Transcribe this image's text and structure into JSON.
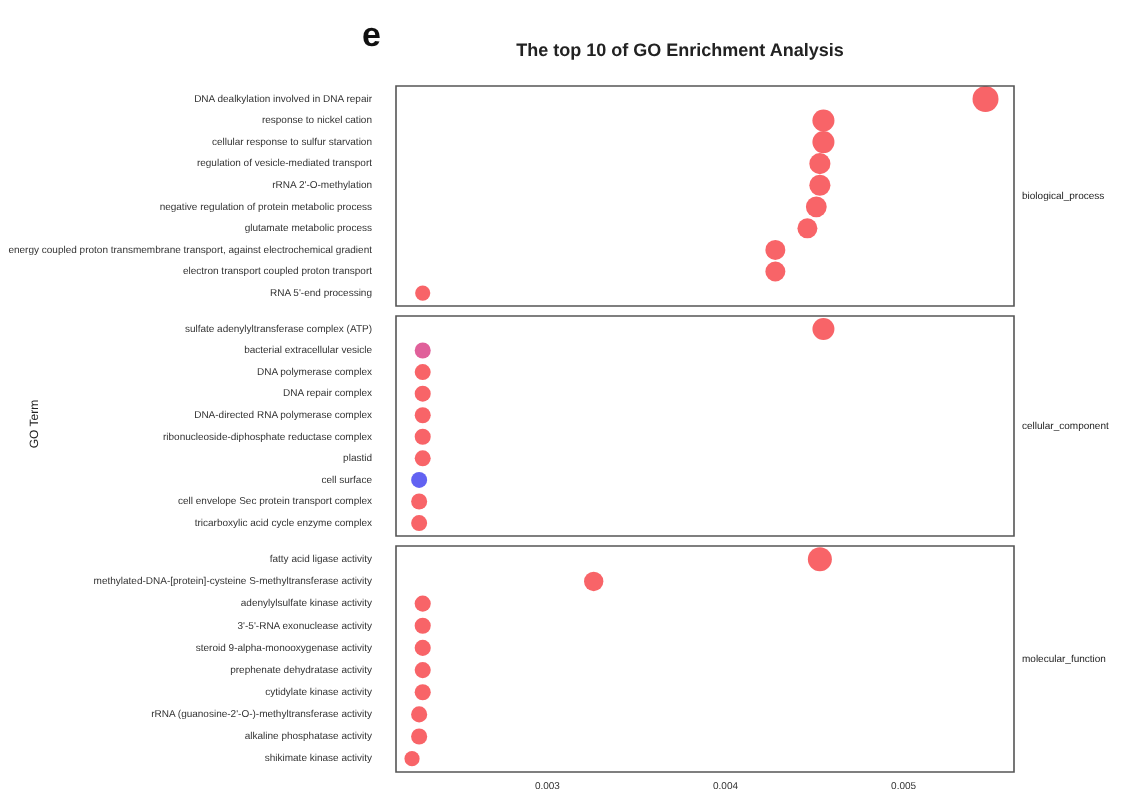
{
  "chart_data": [
    {
      "type": "bubble",
      "title": "The top 10 of GO Enrichment Analysis",
      "annotations": [
        "e"
      ],
      "y2label": "biological_process",
      "orientation": "horizontal",
      "tick_labels": "y",
      "legend": false,
      "grid": false,
      "xlim": [
        0.00215,
        0.00562
      ],
      "xticks": [
        0.003,
        0.004,
        0.005
      ],
      "categories": [
        "DNA dealkylation involved in DNA repair",
        "response to nickel cation",
        "cellular response to sulfur starvation",
        "regulation of vesicle-mediated transport",
        "rRNA 2'-O-methylation",
        "negative regulation of protein metabolic process",
        "glutamate metabolic process",
        "energy coupled proton transmembrane transport, against electrochemical gradient",
        "electron transport coupled proton transport",
        "RNA 5'-end processing"
      ],
      "values": [
        0.00546,
        0.00455,
        0.00455,
        0.00453,
        0.00453,
        0.00451,
        0.00446,
        0.00428,
        0.00428,
        0.0023
      ],
      "sizes": [
        1,
        0.72,
        0.72,
        0.66,
        0.66,
        0.64,
        0.59,
        0.59,
        0.59,
        0.34
      ],
      "colors": [
        "#f86468",
        "#f86468",
        "#f86468",
        "#f86468",
        "#f86468",
        "#f86468",
        "#f86468",
        "#f86468",
        "#f86468",
        "#f86468"
      ]
    },
    {
      "type": "bubble",
      "ylabel": "GO Term",
      "y2label": "cellular_component",
      "orientation": "horizontal",
      "tick_labels": "y",
      "legend": false,
      "grid": false,
      "xlim": [
        0.00215,
        0.00562
      ],
      "xticks": [
        0.003,
        0.004,
        0.005
      ],
      "categories": [
        "sulfate adenylyltransferase complex (ATP)",
        "bacterial extracellular vesicle",
        "DNA polymerase complex",
        "DNA repair complex",
        "DNA-directed RNA polymerase complex",
        "ribonucleoside-diphosphate reductase complex",
        "plastid",
        "cell surface",
        "cell envelope Sec protein transport complex",
        "tricarboxylic acid cycle enzyme complex"
      ],
      "values": [
        0.00455,
        0.0023,
        0.0023,
        0.0023,
        0.0023,
        0.0023,
        0.0023,
        0.00228,
        0.00228,
        0.00228
      ],
      "sizes": [
        1,
        0.53,
        0.53,
        0.53,
        0.53,
        0.53,
        0.53,
        0.53,
        0.53,
        0.53
      ],
      "colors": [
        "#f86468",
        "#e0609a",
        "#f86468",
        "#f86468",
        "#f86468",
        "#f86468",
        "#f86468",
        "#6262f2",
        "#f86468",
        "#f86468"
      ]
    },
    {
      "type": "bubble",
      "y2label": "molecular_function",
      "orientation": "horizontal",
      "legend": false,
      "grid": false,
      "xlim": [
        0.00215,
        0.00562
      ],
      "xticks": [
        0.003,
        0.004,
        0.005
      ],
      "categories": [
        "fatty acid ligase activity",
        "methylated-DNA-[protein]-cysteine S-methyltransferase activity",
        "adenylylsulfate kinase activity",
        "3'-5'-RNA exonuclease activity",
        "steroid 9-alpha-monooxygenase activity",
        "prephenate dehydratase activity",
        "cytidylate kinase activity",
        "rRNA (guanosine-2'-O-)-methyltransferase activity",
        "alkaline phosphatase activity",
        "shikimate kinase activity"
      ],
      "values": [
        0.00453,
        0.00326,
        0.0023,
        0.0023,
        0.0023,
        0.0023,
        0.0023,
        0.00228,
        0.00228,
        0.00224
      ],
      "sizes": [
        1,
        0.65,
        0.45,
        0.45,
        0.45,
        0.45,
        0.45,
        0.45,
        0.45,
        0.4
      ],
      "colors": [
        "#f86468",
        "#f86468",
        "#f86468",
        "#f86468",
        "#f86468",
        "#f86468",
        "#f86468",
        "#f86468",
        "#f86468",
        "#f86468"
      ]
    }
  ]
}
